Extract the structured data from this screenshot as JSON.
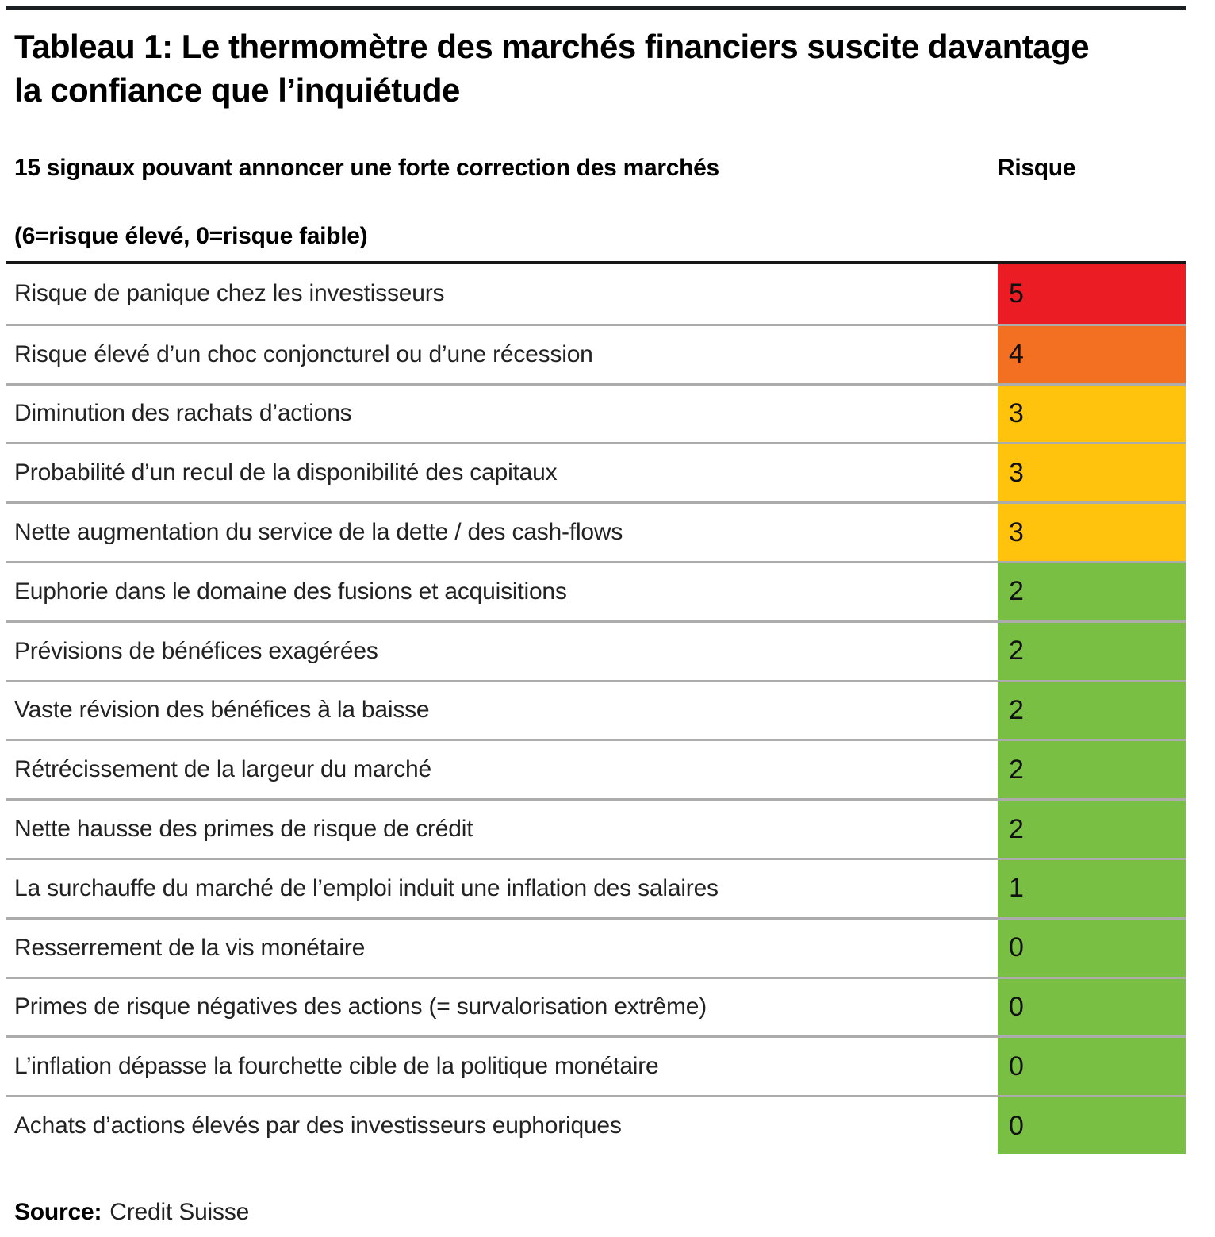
{
  "page": {
    "title": "Tableau 1: Le thermomètre des marchés financiers suscite davantage la confiance que l’inquiétude",
    "column_header_left": "15 signaux pouvant annoncer une forte correction des marchés",
    "column_header_right": "Risque",
    "scale_note": "(6=risque élevé, 0=risque faible)",
    "source_label": "Source:",
    "source_value": "Credit Suisse"
  },
  "colors": {
    "risk_high": "#EC1C24",
    "risk_elevated": "#F36F21",
    "risk_medium": "#FFC20D",
    "risk_low": "#79BF44",
    "top_rule": "#1C1F22",
    "header_rule": "#161616",
    "row_separator": "#ACACAC"
  },
  "chart_data": {
    "type": "table",
    "title": "Tableau 1: Le thermomètre des marchés financiers suscite davantage la confiance que l’inquiétude",
    "columns": [
      "15 signaux pouvant annoncer une forte correction des marchés",
      "Risque"
    ],
    "scale": "6=risque élevé, 0=risque faible",
    "value_range": [
      0,
      6
    ],
    "source": "Credit Suisse",
    "rows": [
      {
        "label": "Risque de panique chez les investisseurs",
        "value": "5",
        "color": "#EC1C24"
      },
      {
        "label": "Risque élevé d’un choc conjoncturel ou d’une récession",
        "value": "4",
        "color": "#F36F21"
      },
      {
        "label": "Diminution des rachats d’actions",
        "value": "3",
        "color": "#FFC20D"
      },
      {
        "label": "Probabilité d’un recul de la disponibilité des capitaux",
        "value": "3",
        "color": "#FFC20D"
      },
      {
        "label": "Nette augmentation du service de la dette / des cash-flows",
        "value": "3",
        "color": "#FFC20D"
      },
      {
        "label": "Euphorie dans le domaine des fusions et acquisitions",
        "value": "2",
        "color": "#79BF44"
      },
      {
        "label": "Prévisions de bénéfices exagérées",
        "value": "2",
        "color": "#79BF44"
      },
      {
        "label": "Vaste révision des bénéfices à la baisse",
        "value": "2",
        "color": "#79BF44"
      },
      {
        "label": "Rétrécissement de la largeur du marché",
        "value": "2",
        "color": "#79BF44"
      },
      {
        "label": "Nette hausse des primes de risque de crédit",
        "value": "2",
        "color": "#79BF44"
      },
      {
        "label": "La surchauffe du marché de l’emploi induit une inflation des salaires",
        "value": "1",
        "color": "#79BF44"
      },
      {
        "label": "Resserrement de la vis monétaire",
        "value": "0",
        "color": "#79BF44"
      },
      {
        "label": "Primes de risque négatives des actions (= survalorisation extrême)",
        "value": "0",
        "color": "#79BF44"
      },
      {
        "label": "L’inflation dépasse la fourchette cible de la politique monétaire",
        "value": "0",
        "color": "#79BF44"
      },
      {
        "label": "Achats d’actions élevés par des investisseurs euphoriques",
        "value": "0",
        "color": "#79BF44"
      }
    ]
  }
}
